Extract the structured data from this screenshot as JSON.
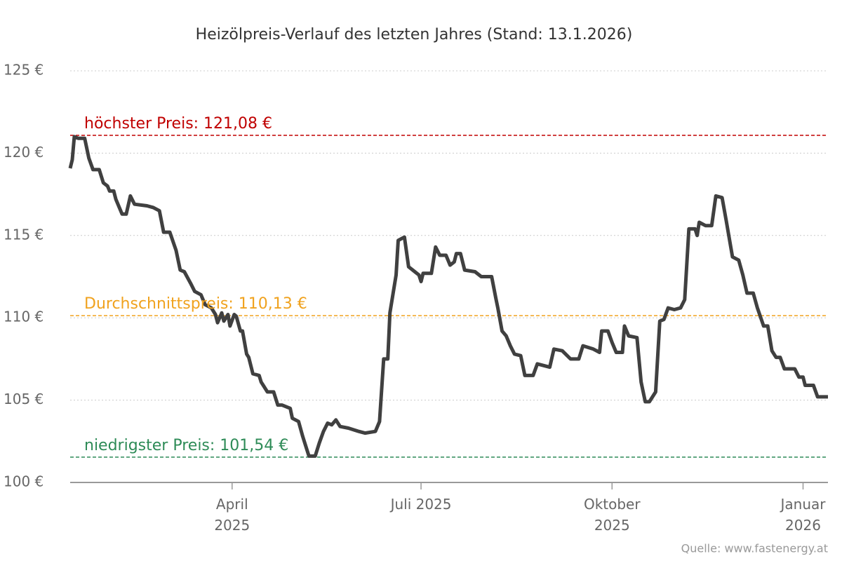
{
  "chart_data": {
    "type": "line",
    "title": "Heizölpreis-Verlauf des letzten Jahres (Stand: 13.1.2026)",
    "source": "Quelle: www.fastenergy.at",
    "color": "#404040",
    "x": [
      0,
      1,
      2,
      4,
      7,
      9,
      11,
      14,
      16,
      18,
      19,
      21,
      22,
      25,
      27,
      29,
      31,
      37,
      40,
      43,
      45,
      48,
      51,
      53,
      55,
      58,
      60,
      63,
      65,
      68,
      70,
      71,
      73,
      74,
      76,
      77,
      79,
      80,
      82,
      83,
      85,
      86,
      88,
      91,
      92,
      93,
      95,
      98,
      100,
      102,
      106,
      107,
      110,
      112,
      114,
      115,
      118,
      120,
      122,
      124,
      126,
      128,
      130,
      134,
      139,
      142,
      147,
      149,
      151,
      153,
      154,
      157,
      158,
      161,
      163,
      166,
      168,
      169,
      170,
      174,
      176,
      178,
      181,
      183,
      185,
      186,
      188,
      190,
      195,
      198,
      203,
      205,
      206,
      208,
      210,
      212,
      214,
      217,
      219,
      223,
      225,
      231,
      233,
      237,
      241,
      245,
      247,
      252,
      255,
      256,
      259,
      261,
      263,
      266,
      267,
      269,
      273,
      275,
      277,
      279,
      282,
      284,
      286,
      288,
      291,
      294,
      296,
      298,
      301,
      302,
      303,
      306,
      309,
      311,
      314,
      316,
      319,
      322,
      324,
      326,
      329,
      331,
      334,
      336,
      338,
      340,
      342,
      344,
      349,
      351,
      353,
      354,
      358,
      360,
      365
    ],
    "values": [
      119.08,
      119.6,
      121.0,
      120.9,
      120.9,
      119.7,
      119.0,
      119.0,
      118.2,
      118.0,
      117.7,
      117.7,
      117.2,
      116.3,
      116.3,
      117.4,
      116.9,
      116.8,
      116.7,
      116.5,
      115.2,
      115.2,
      114.1,
      112.9,
      112.8,
      112.1,
      111.6,
      111.4,
      110.8,
      110.6,
      110.2,
      109.7,
      110.3,
      109.8,
      110.2,
      109.5,
      110.2,
      110.1,
      109.2,
      109.2,
      107.8,
      107.6,
      106.6,
      106.5,
      106.1,
      105.9,
      105.5,
      105.5,
      104.7,
      104.7,
      104.5,
      103.9,
      103.7,
      102.8,
      102.0,
      101.6,
      101.6,
      102.4,
      103.1,
      103.6,
      103.5,
      103.8,
      103.4,
      103.3,
      103.1,
      103.0,
      103.1,
      103.7,
      107.5,
      107.5,
      110.3,
      112.6,
      114.7,
      114.9,
      113.1,
      112.8,
      112.6,
      112.2,
      112.7,
      112.7,
      114.3,
      113.8,
      113.8,
      113.2,
      113.4,
      113.9,
      113.9,
      112.9,
      112.8,
      112.5,
      112.5,
      111.2,
      110.6,
      109.2,
      108.9,
      108.3,
      107.8,
      107.7,
      106.5,
      106.5,
      107.2,
      107.0,
      108.1,
      108.0,
      107.5,
      107.5,
      108.3,
      108.1,
      107.9,
      109.2,
      109.2,
      108.5,
      107.9,
      107.9,
      109.5,
      108.9,
      108.8,
      106.1,
      104.9,
      104.9,
      105.5,
      109.8,
      109.9,
      110.6,
      110.5,
      110.6,
      111.1,
      115.4,
      115.4,
      115.0,
      115.8,
      115.6,
      115.6,
      117.4,
      117.3,
      115.9,
      113.7,
      113.5,
      112.6,
      111.5,
      111.5,
      110.6,
      109.5,
      109.5,
      108.0,
      107.6,
      107.6,
      106.9,
      106.9,
      106.4,
      106.4,
      105.9,
      105.9,
      105.2,
      105.2
    ],
    "xlim": [
      0,
      365
    ],
    "xticks": [
      {
        "value": 78,
        "label": "April 2025"
      },
      {
        "value": 169,
        "label": "Juli 2025"
      },
      {
        "value": 261,
        "label": "Oktober 2025"
      },
      {
        "value": 353,
        "label": "Januar 2026"
      }
    ],
    "ylim": [
      100,
      125
    ],
    "yticks": [
      {
        "value": 100,
        "label": "100 €"
      },
      {
        "value": 105,
        "label": "105 €"
      },
      {
        "value": 110,
        "label": "110 €"
      },
      {
        "value": 115,
        "label": "115 €"
      },
      {
        "value": 120,
        "label": "120 €"
      },
      {
        "value": 125,
        "label": "125 €"
      }
    ],
    "grid": true,
    "reference_lines": [
      {
        "value": 121.08,
        "label": "höchster Preis: 121,08 €",
        "color": "#c00000"
      },
      {
        "value": 110.13,
        "label": "Durchschnittspreis: 110,13 €",
        "color": "#f0a21e"
      },
      {
        "value": 101.54,
        "label": "niedrigster Preis: 101,54 €",
        "color": "#2e8b57"
      }
    ]
  }
}
